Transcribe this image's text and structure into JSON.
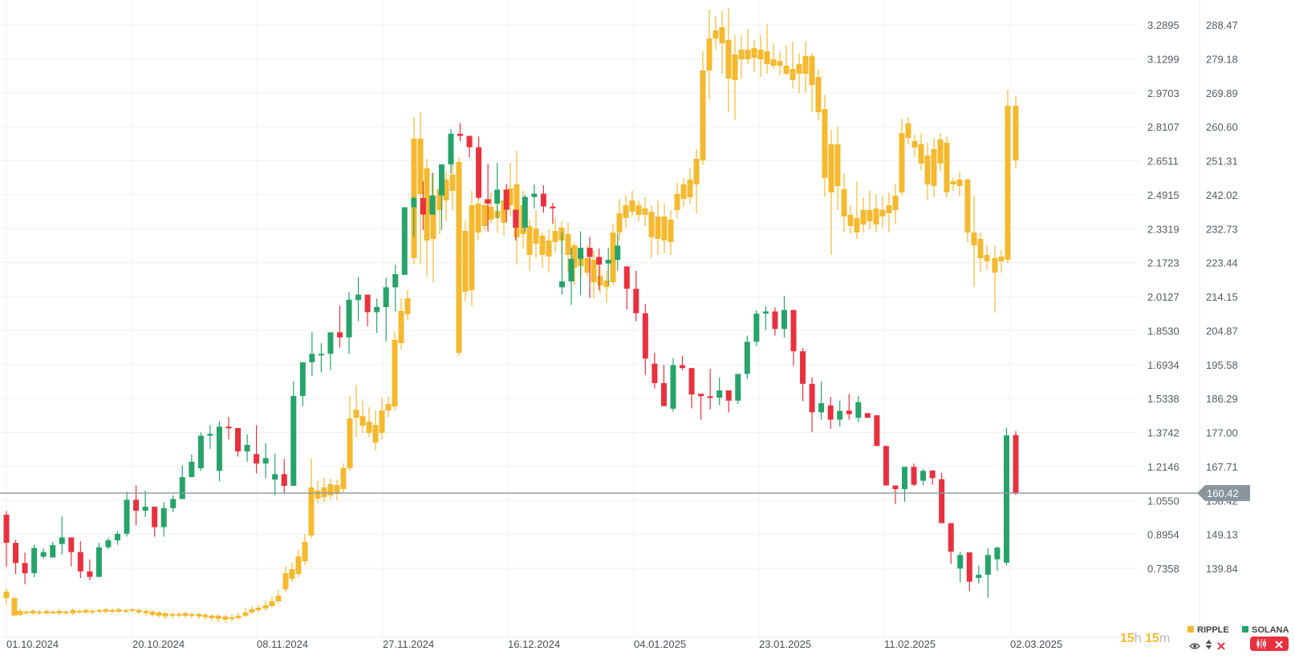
{
  "colors": {
    "up": "#27a36a",
    "down": "#e8313f",
    "ripple": "#f4b92f",
    "grid": "#f0f0f0",
    "current_line": "#8b959c",
    "badge": "#8b959c",
    "timer_num": "#f4b92f",
    "timer_unit": "#b8b8b8"
  },
  "legend": {
    "ripple": {
      "label": "RIPPLE",
      "color": "#f4b92f"
    },
    "solana": {
      "label": "SOLANA",
      "color": "#27a36a"
    }
  },
  "timer": {
    "h_value": "15",
    "h_unit": "h",
    "m_value": "15",
    "m_unit": "m"
  },
  "current_price": {
    "solana": "160.42"
  },
  "chart_data": {
    "type": "candlestick",
    "title": "",
    "x_tick_labels": [
      "01.10.2024",
      "20.10.2024",
      "08.11.2024",
      "27.11.2024",
      "16.12.2024",
      "04.01.2025",
      "23.01.2025",
      "11.02.2025",
      "02.03.2025"
    ],
    "y_axis_ripple": {
      "ticks": [
        "3.2895",
        "3.1299",
        "2.9703",
        "2.8107",
        "2.6511",
        "2.4915",
        "2.3319",
        "2.1723",
        "2.0127",
        "1.8530",
        "1.6934",
        "1.5338",
        "1.3742",
        "1.2146",
        "1.0550",
        "0.8954",
        "0.7358"
      ],
      "range": [
        0.58,
        3.4
      ]
    },
    "y_axis_solana": {
      "ticks": [
        "288.47",
        "279.18",
        "269.89",
        "260.60",
        "251.31",
        "242.02",
        "232.73",
        "223.44",
        "214.15",
        "204.87",
        "195.58",
        "186.29",
        "177.00",
        "167.71",
        "158.42",
        "149.13",
        "139.84"
      ],
      "range": [
        130.5,
        295.0
      ]
    },
    "legend_position": "bottom-right",
    "grid": true,
    "series": [
      {
        "name": "SOLANA",
        "ohlc": [
          [
            154.5,
            155.5,
            140.2,
            146.8
          ],
          [
            146.8,
            147.6,
            138.3,
            141.3
          ],
          [
            141.3,
            144.1,
            135.5,
            138.5
          ],
          [
            138.5,
            146.3,
            137.4,
            145.4
          ],
          [
            143.0,
            145.3,
            142.5,
            144.3
          ],
          [
            142.8,
            147.0,
            142.8,
            146.2
          ],
          [
            146.5,
            154.0,
            143.6,
            148.3
          ],
          [
            148.3,
            147.7,
            140.4,
            144.3
          ],
          [
            144.3,
            147.3,
            137.2,
            139.0
          ],
          [
            139.0,
            142.3,
            136.6,
            137.5
          ],
          [
            137.5,
            146.8,
            137.5,
            145.6
          ],
          [
            145.6,
            148.2,
            145.0,
            147.5
          ],
          [
            147.5,
            150.0,
            146.3,
            149.3
          ],
          [
            149.3,
            160.8,
            148.5,
            158.6
          ],
          [
            158.6,
            162.5,
            151.6,
            155.6
          ],
          [
            155.6,
            161.1,
            153.9,
            156.7
          ],
          [
            156.7,
            154.6,
            148.5,
            151.1
          ],
          [
            151.1,
            158.0,
            148.5,
            156.3
          ],
          [
            156.3,
            159.8,
            155.2,
            158.8
          ],
          [
            158.8,
            168.0,
            158.8,
            164.8
          ],
          [
            164.8,
            171.0,
            166.3,
            169.0
          ],
          [
            167.2,
            177.0,
            166.5,
            176.1
          ],
          [
            176.1,
            179.0,
            172.5,
            176.6
          ],
          [
            166.5,
            180.1,
            163.6,
            178.6
          ],
          [
            178.6,
            181.3,
            175.1,
            178.2
          ],
          [
            178.2,
            177.0,
            170.4,
            171.8
          ],
          [
            171.8,
            176.5,
            169.0,
            173.6
          ],
          [
            171.1,
            179.0,
            165.8,
            168.5
          ],
          [
            168.5,
            174.1,
            164.5,
            170.0
          ],
          [
            164.1,
            171.2,
            159.8,
            165.6
          ],
          [
            165.6,
            169.8,
            160.6,
            162.4
          ],
          [
            162.4,
            191.0,
            162.4,
            187.0
          ],
          [
            187.0,
            195.6,
            184.2,
            196.2
          ],
          [
            196.2,
            204.5,
            192.5,
            198.5
          ],
          [
            198.5,
            201.4,
            193.4,
            198.5
          ],
          [
            198.5,
            202.6,
            194.1,
            204.4
          ],
          [
            204.4,
            211.6,
            200.2,
            203.0
          ],
          [
            203.0,
            215.4,
            198.5,
            213.3
          ],
          [
            213.2,
            219.5,
            207.4,
            214.7
          ],
          [
            214.7,
            212.6,
            206.0,
            209.9
          ],
          [
            209.9,
            213.6,
            204.2,
            211.3
          ],
          [
            211.3,
            219.3,
            201.9,
            216.7
          ],
          [
            216.7,
            222.8,
            210.1,
            220.3
          ],
          [
            220.1,
            228.1,
            221.5,
            238.6
          ],
          [
            238.6,
            241.6,
            230.5,
            241.1
          ],
          [
            241.1,
            245.7,
            232.4,
            236.6
          ],
          [
            236.6,
            248.0,
            237.7,
            241.8
          ],
          [
            241.8,
            250.3,
            232.4,
            250.3
          ],
          [
            250.3,
            260.0,
            247.8,
            258.7
          ],
          [
            258.7,
            261.6,
            256.6,
            258.1
          ],
          [
            258.1,
            256.7,
            252.2,
            255.0
          ],
          [
            255.0,
            257.9,
            240.8,
            241.2
          ],
          [
            240.8,
            250.5,
            232.0,
            239.6
          ],
          [
            239.6,
            250.7,
            235.5,
            243.4
          ],
          [
            243.4,
            245.0,
            234.6,
            237.9
          ],
          [
            237.9,
            237.9,
            229.5,
            233.0
          ],
          [
            233.0,
            242.0,
            232.0,
            241.4
          ],
          [
            241.4,
            244.8,
            238.2,
            242.3
          ],
          [
            242.3,
            244.6,
            237.1,
            238.8
          ],
          [
            238.8,
            239.8,
            234.0,
            238.3
          ],
          [
            216.7,
            231.7,
            214.7,
            218.3
          ],
          [
            218.3,
            227.5,
            211.9,
            224.5
          ],
          [
            224.5,
            232.0,
            214.5,
            227.5
          ],
          [
            227.5,
            230.5,
            213.8,
            225.0
          ],
          [
            225.0,
            227.3,
            215.9,
            222.9
          ],
          [
            223.2,
            227.5,
            217.4,
            224.2
          ],
          [
            224.2,
            231.5,
            221.3,
            228.1
          ],
          [
            222.4,
            220.1,
            210.6,
            216.3
          ],
          [
            216.3,
            221.2,
            207.4,
            209.6
          ],
          [
            209.6,
            212.1,
            192.8,
            197.2
          ],
          [
            195.8,
            198.8,
            189.0,
            190.5
          ],
          [
            190.5,
            195.5,
            185.6,
            184.2
          ],
          [
            183.5,
            197.3,
            182.7,
            195.4
          ],
          [
            195.4,
            198.0,
            194.0,
            194.6
          ],
          [
            194.6,
            192.7,
            183.6,
            187.4
          ],
          [
            187.6,
            184.1,
            180.5,
            186.9
          ],
          [
            186.9,
            194.4,
            183.3,
            186.5
          ],
          [
            186.5,
            192.0,
            184.5,
            188.5
          ],
          [
            188.5,
            187.2,
            182.5,
            185.7
          ],
          [
            185.7,
            192.5,
            184.8,
            193.0
          ],
          [
            193.0,
            203.5,
            191.6,
            201.8
          ],
          [
            201.8,
            210.4,
            200.6,
            209.5
          ],
          [
            209.5,
            211.5,
            205.0,
            210.1
          ],
          [
            210.1,
            211.2,
            203.5,
            205.3
          ],
          [
            205.3,
            214.3,
            202.9,
            210.5
          ],
          [
            210.5,
            210.5,
            195.2,
            199.2
          ],
          [
            199.2,
            200.0,
            185.6,
            190.3
          ],
          [
            190.3,
            192.1,
            177.1,
            182.5
          ],
          [
            182.5,
            190.9,
            180.5,
            185.0
          ],
          [
            184.4,
            186.7,
            178.0,
            180.5
          ],
          [
            180.5,
            185.7,
            178.6,
            182.9
          ],
          [
            183.0,
            187.5,
            180.5,
            182.0
          ],
          [
            181.0,
            187.0,
            179.8,
            185.3
          ],
          [
            182.3,
            182.3,
            181.0,
            181.0
          ],
          [
            181.7,
            174.1,
            174.2,
            173.3
          ],
          [
            173.3,
            162.7,
            168.0,
            162.5
          ],
          [
            162.5,
            161.4,
            157.4,
            161.5
          ],
          [
            161.5,
            164.1,
            158.0,
            167.6
          ],
          [
            167.6,
            168.5,
            162.3,
            162.7
          ],
          [
            163.8,
            167.0,
            162.5,
            166.5
          ],
          [
            166.6,
            166.7,
            162.7,
            164.5
          ],
          [
            164.2,
            166.0,
            154.6,
            152.2
          ],
          [
            152.2,
            142.8,
            141.1,
            144.4
          ],
          [
            139.8,
            144.4,
            136.0,
            143.5
          ],
          [
            144.2,
            144.0,
            133.6,
            136.2
          ],
          [
            137.2,
            140.6,
            135.7,
            138.1
          ],
          [
            138.1,
            145.3,
            131.8,
            143.5
          ],
          [
            142.3,
            145.8,
            139.2,
            145.5
          ],
          [
            141.4,
            178.3,
            140.6,
            176.2
          ],
          [
            176.3,
            177.4,
            159.9,
            160.4
          ]
        ]
      }
    ]
  }
}
